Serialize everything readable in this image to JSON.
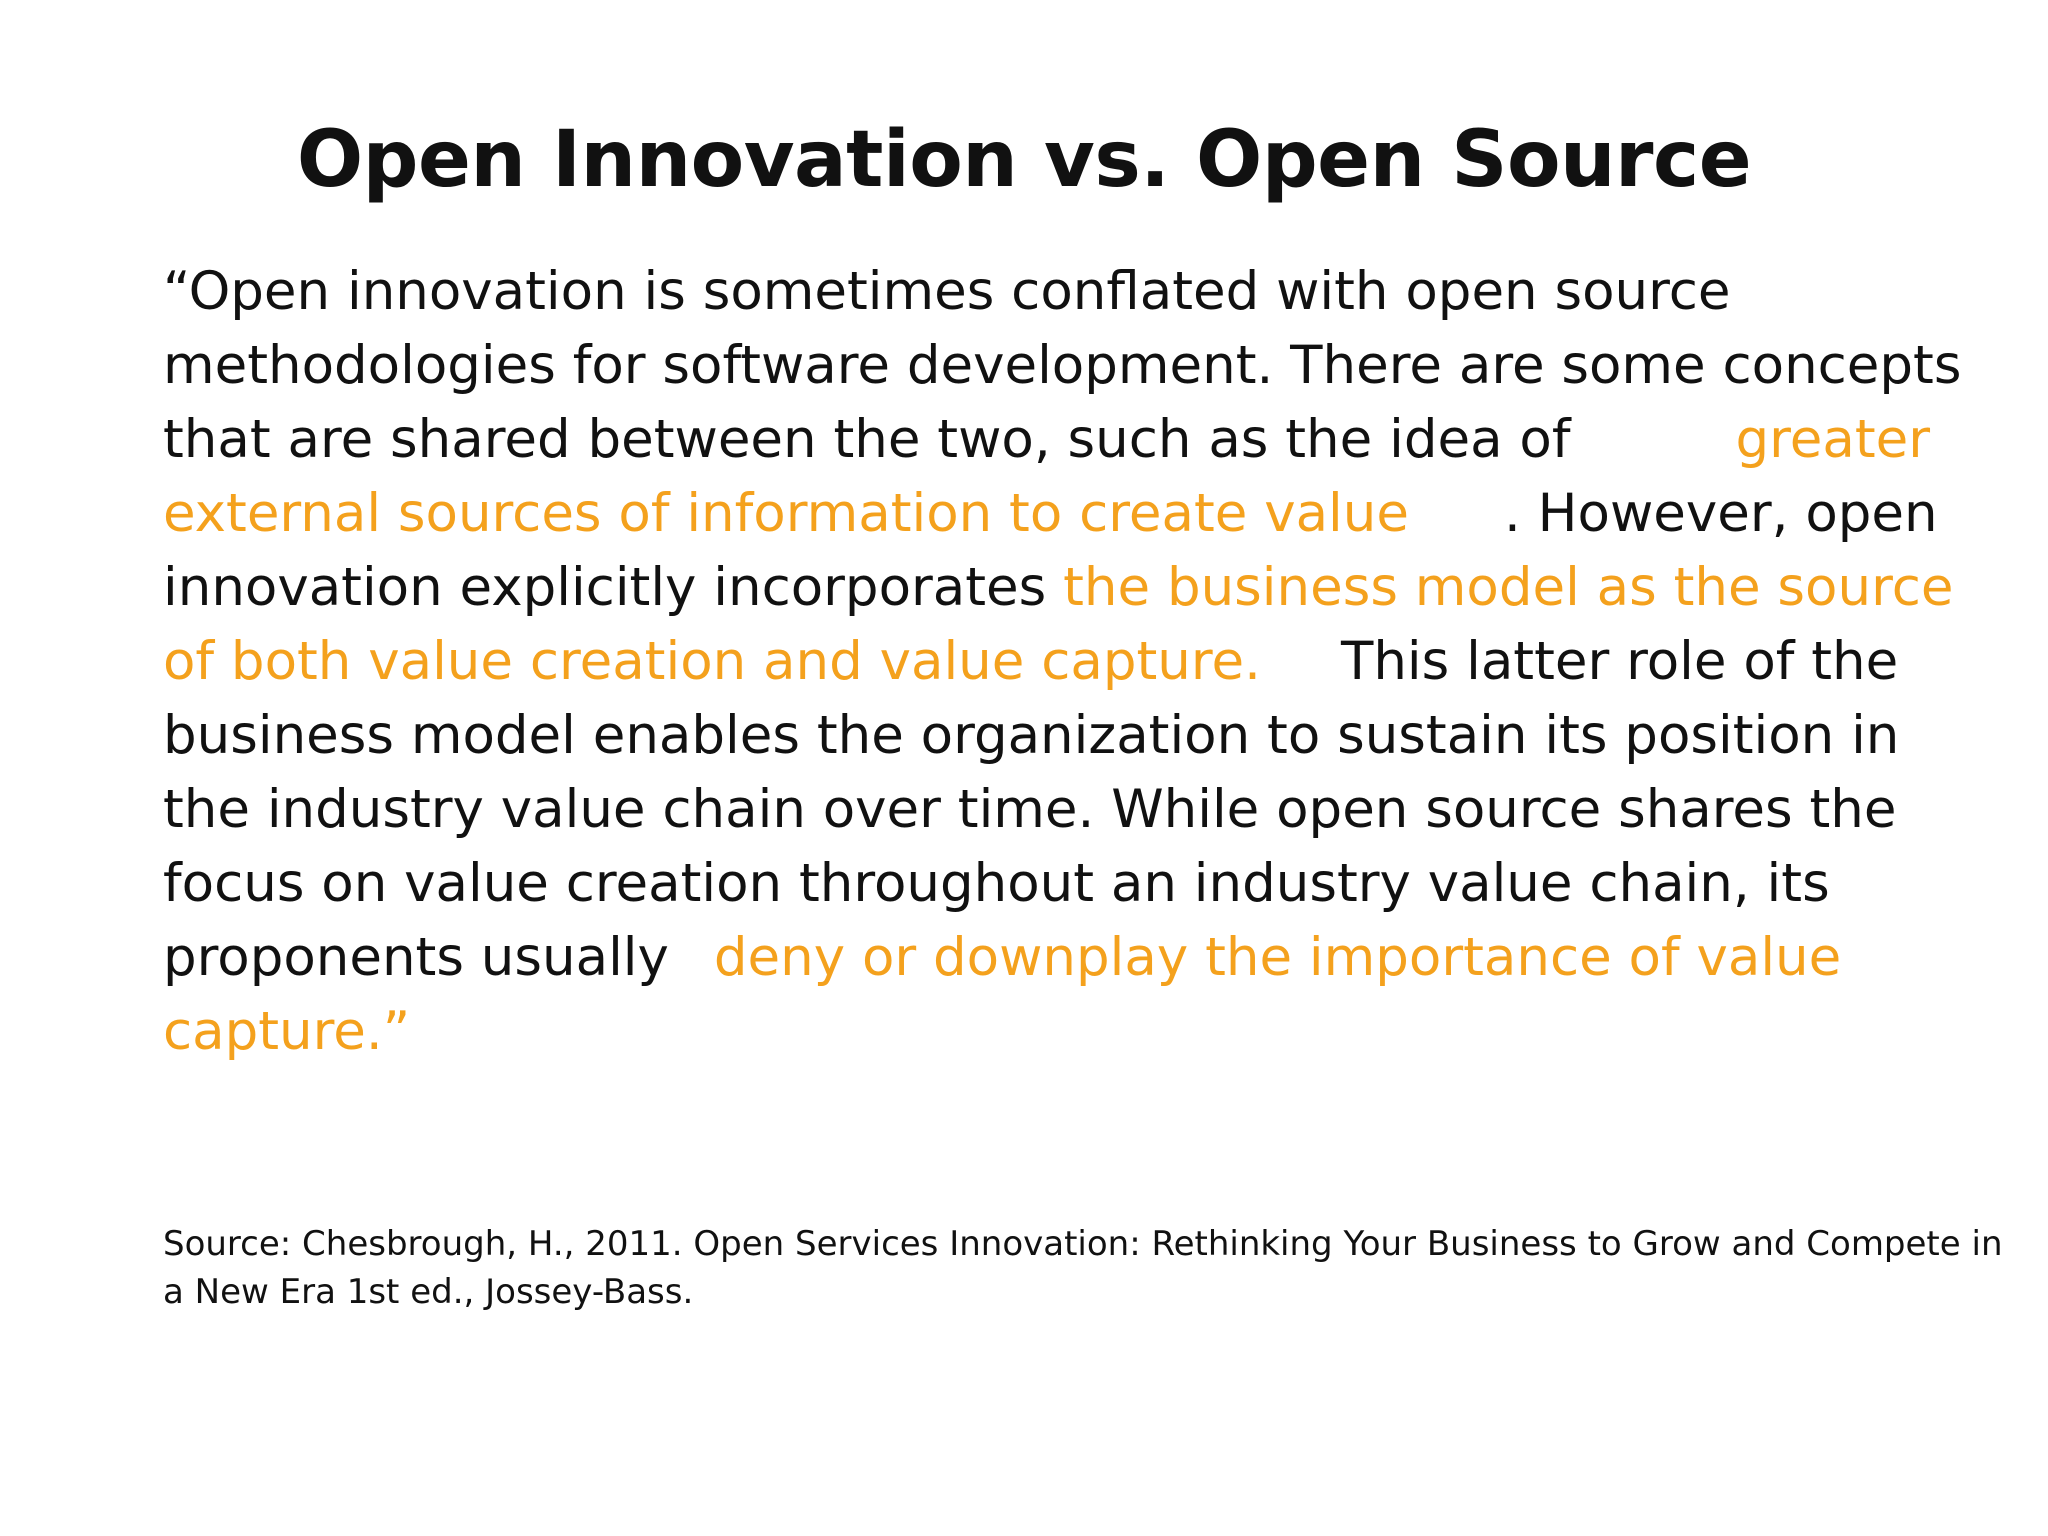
{
  "slide": {
    "title": "Open Innovation vs. Open Source",
    "quote_lines": [
      {
        "parts": [
          {
            "text": "“Open innovation is sometimes conflated with open source",
            "highlight": false
          }
        ]
      },
      {
        "parts": [
          {
            "text": "methodologies for software development. There are some concepts",
            "highlight": false
          }
        ]
      },
      {
        "parts": [
          {
            "text": "that are shared between the two, such as the idea of",
            "highlight": false
          },
          {
            "text": "greater",
            "highlight": true
          }
        ]
      },
      {
        "parts": [
          {
            "text": "external sources of information to create value",
            "highlight": true
          },
          {
            "text": ". However, open",
            "highlight": false
          }
        ]
      },
      {
        "parts": [
          {
            "text": "innovation explicitly incorporates ",
            "highlight": false
          },
          {
            "text": "the business model as the source",
            "highlight": true
          }
        ]
      },
      {
        "parts": [
          {
            "text": "of both value creation and value capture.",
            "highlight": true
          },
          {
            "text": "This latter role of the",
            "highlight": false
          }
        ]
      },
      {
        "parts": [
          {
            "text": "business model enables the organization to sustain its position in",
            "highlight": false
          }
        ]
      },
      {
        "parts": [
          {
            "text": "the industry value chain over time. While open source shares the",
            "highlight": false
          }
        ]
      },
      {
        "parts": [
          {
            "text": "focus on value creation throughout an industry value chain, its",
            "highlight": false
          }
        ]
      },
      {
        "parts": [
          {
            "text": "proponents usually",
            "highlight": false
          },
          {
            "text": "deny or downplay the importance of value",
            "highlight": true
          }
        ]
      },
      {
        "parts": [
          {
            "text": "capture.”",
            "highlight": true
          }
        ]
      }
    ],
    "source_lines": [
      "Source: Chesbrough, H., 2011. Open Services Innovation: Rethinking Your Business to Grow and Compete in",
      "a New Era 1st ed., Jossey-Bass."
    ],
    "colors": {
      "text": "#111111",
      "highlight": "#f4a11d",
      "background": "#ffffff"
    }
  }
}
